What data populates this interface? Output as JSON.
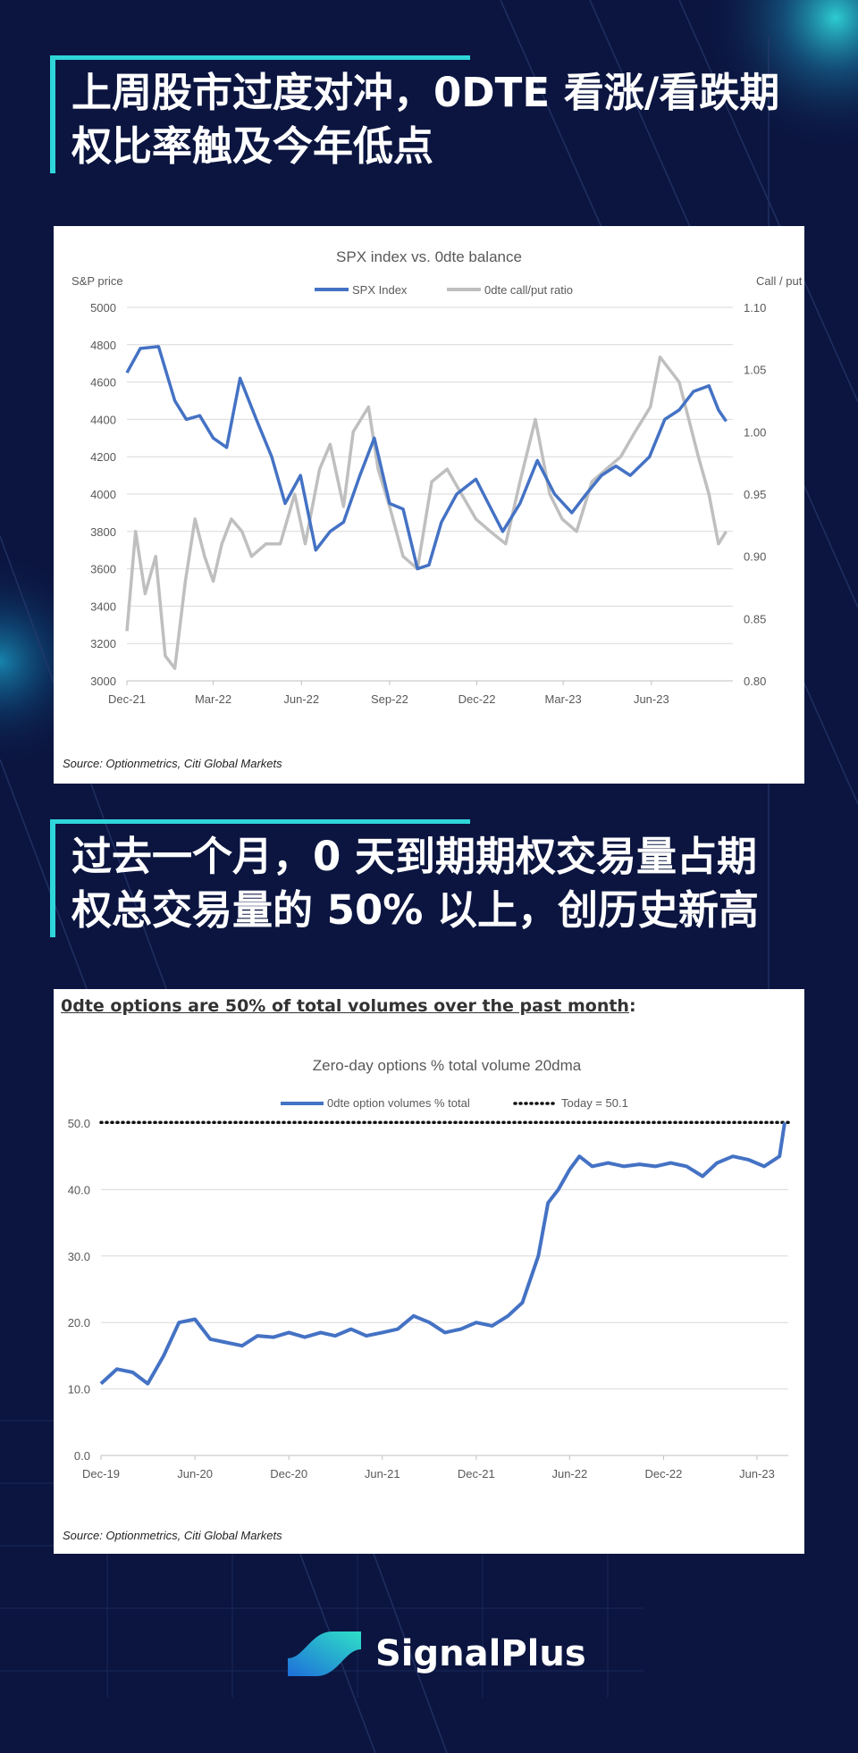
{
  "heading1": "上周股市过度对冲，0DTE 看涨/看跌期权比率触及今年低点",
  "heading1_lines": [
    "上周股市过度对冲，0DTE 看涨/看跌期",
    "权比率触及今年低点"
  ],
  "heading2_lines": [
    "过去一个月，0 天到期期权交易量占期",
    "权总交易量的 50% 以上，创历史新高"
  ],
  "colors": {
    "background": "#0b1540",
    "accent": "#2fd6d9",
    "spx_line": "#4472c4",
    "ratio_line": "#bfbfbf"
  },
  "brand": {
    "name": "SignalPlus",
    "logo_icon": "signalplus-logo-icon"
  },
  "chart_data": [
    {
      "type": "line",
      "title": "SPX index vs. 0dte balance",
      "ylabel": "S&P price",
      "y2label": "Call / put",
      "source": "Source: Optionmetrics, Citi Global Markets",
      "x_ticks": [
        "Dec-21",
        "Mar-22",
        "Jun-22",
        "Sep-22",
        "Dec-22",
        "Mar-23",
        "Jun-23"
      ],
      "ylim": [
        3000,
        5000
      ],
      "y_ticks": [
        3000,
        3200,
        3400,
        3600,
        3800,
        4000,
        4200,
        4400,
        4600,
        4800,
        5000
      ],
      "y2lim": [
        0.8,
        1.1
      ],
      "y2_ticks": [
        "0.80",
        "0.85",
        "0.90",
        "0.95",
        "1.00",
        "1.05",
        "1.10"
      ],
      "grid": true,
      "legend": "top-center",
      "series": [
        {
          "name": "SPX Index",
          "axis": "left",
          "x": [
            "2021-12-01",
            "2021-12-15",
            "2022-01-03",
            "2022-01-20",
            "2022-02-01",
            "2022-02-15",
            "2022-03-01",
            "2022-03-15",
            "2022-03-29",
            "2022-04-15",
            "2022-05-01",
            "2022-05-15",
            "2022-05-31",
            "2022-06-16",
            "2022-07-01",
            "2022-07-15",
            "2022-08-01",
            "2022-08-16",
            "2022-09-01",
            "2022-09-15",
            "2022-09-30",
            "2022-10-12",
            "2022-10-25",
            "2022-11-10",
            "2022-11-30",
            "2022-12-13",
            "2022-12-28",
            "2023-01-15",
            "2023-02-02",
            "2023-02-20",
            "2023-03-10",
            "2023-03-25",
            "2023-04-10",
            "2023-04-25",
            "2023-05-10",
            "2023-05-30",
            "2023-06-15",
            "2023-06-30",
            "2023-07-15",
            "2023-07-31",
            "2023-08-10",
            "2023-08-18"
          ],
          "values": [
            4650,
            4780,
            4790,
            4500,
            4400,
            4420,
            4300,
            4250,
            4620,
            4400,
            4200,
            3950,
            4100,
            3700,
            3800,
            3850,
            4100,
            4300,
            3950,
            3920,
            3600,
            3620,
            3850,
            4000,
            4080,
            3950,
            3800,
            3950,
            4180,
            4000,
            3900,
            4000,
            4100,
            4150,
            4100,
            4200,
            4400,
            4450,
            4550,
            4580,
            4450,
            4390
          ]
        },
        {
          "name": "0dte call/put ratio",
          "axis": "right",
          "x": [
            "2021-12-01",
            "2021-12-10",
            "2021-12-20",
            "2021-12-31",
            "2022-01-10",
            "2022-01-20",
            "2022-01-31",
            "2022-02-10",
            "2022-02-20",
            "2022-03-01",
            "2022-03-10",
            "2022-03-20",
            "2022-03-31",
            "2022-04-10",
            "2022-04-25",
            "2022-05-10",
            "2022-05-25",
            "2022-06-05",
            "2022-06-20",
            "2022-07-01",
            "2022-07-15",
            "2022-07-25",
            "2022-08-10",
            "2022-08-20",
            "2022-09-01",
            "2022-09-15",
            "2022-09-30",
            "2022-10-15",
            "2022-10-31",
            "2022-11-15",
            "2022-11-30",
            "2022-12-15",
            "2022-12-31",
            "2023-01-15",
            "2023-01-31",
            "2023-02-15",
            "2023-02-28",
            "2023-03-15",
            "2023-03-31",
            "2023-04-15",
            "2023-04-30",
            "2023-05-15",
            "2023-05-31",
            "2023-06-10",
            "2023-06-20",
            "2023-06-30",
            "2023-07-10",
            "2023-07-20",
            "2023-07-31",
            "2023-08-10",
            "2023-08-18"
          ],
          "values": [
            0.84,
            0.92,
            0.87,
            0.9,
            0.82,
            0.81,
            0.88,
            0.93,
            0.9,
            0.88,
            0.91,
            0.93,
            0.92,
            0.9,
            0.91,
            0.91,
            0.95,
            0.91,
            0.97,
            0.99,
            0.94,
            1.0,
            1.02,
            0.97,
            0.94,
            0.9,
            0.89,
            0.96,
            0.97,
            0.95,
            0.93,
            0.92,
            0.91,
            0.96,
            1.01,
            0.95,
            0.93,
            0.92,
            0.96,
            0.97,
            0.98,
            1.0,
            1.02,
            1.06,
            1.05,
            1.04,
            1.01,
            0.98,
            0.95,
            0.91,
            0.92
          ]
        }
      ]
    },
    {
      "type": "line",
      "header": "0dte options are 50% of total volumes over the past month",
      "header_suffix": ":",
      "title": "Zero-day options % total volume 20dma",
      "source": "Source: Optionmetrics, Citi Global Markets",
      "x_ticks": [
        "Dec-19",
        "Jun-20",
        "Dec-20",
        "Jun-21",
        "Dec-21",
        "Jun-22",
        "Dec-22",
        "Jun-23"
      ],
      "ylim": [
        0,
        50
      ],
      "y_ticks": [
        "0.0",
        "10.0",
        "20.0",
        "30.0",
        "40.0",
        "50.0"
      ],
      "grid": true,
      "legend": "top-center",
      "series": [
        {
          "name": "0dte option volumes % total",
          "x": [
            "2019-12-01",
            "2020-01-01",
            "2020-02-01",
            "2020-03-01",
            "2020-04-01",
            "2020-05-01",
            "2020-06-01",
            "2020-07-01",
            "2020-08-01",
            "2020-09-01",
            "2020-10-01",
            "2020-11-01",
            "2020-12-01",
            "2021-01-01",
            "2021-02-01",
            "2021-03-01",
            "2021-04-01",
            "2021-05-01",
            "2021-06-01",
            "2021-07-01",
            "2021-08-01",
            "2021-09-01",
            "2021-10-01",
            "2021-11-01",
            "2021-12-01",
            "2022-01-01",
            "2022-02-01",
            "2022-03-01",
            "2022-04-01",
            "2022-04-20",
            "2022-05-10",
            "2022-06-01",
            "2022-06-20",
            "2022-07-15",
            "2022-08-15",
            "2022-09-15",
            "2022-10-15",
            "2022-11-15",
            "2022-12-15",
            "2023-01-15",
            "2023-02-15",
            "2023-03-15",
            "2023-04-15",
            "2023-05-15",
            "2023-06-15",
            "2023-07-15",
            "2023-07-25"
          ],
          "values": [
            10.8,
            13.0,
            12.5,
            10.8,
            15.0,
            20.0,
            20.5,
            17.5,
            17.0,
            16.5,
            18.0,
            17.8,
            18.5,
            17.8,
            18.5,
            18.0,
            19.0,
            18.0,
            18.5,
            19.0,
            21.0,
            20.0,
            18.5,
            19.0,
            20.0,
            19.5,
            21.0,
            23.0,
            30.0,
            38.0,
            40.0,
            43.0,
            45.0,
            43.5,
            44.0,
            43.5,
            43.8,
            43.5,
            44.0,
            43.5,
            42.0,
            44.0,
            45.0,
            44.5,
            43.5,
            45.0,
            50.1
          ]
        },
        {
          "name": "Today = 50.1",
          "value": 50.1
        }
      ]
    }
  ]
}
